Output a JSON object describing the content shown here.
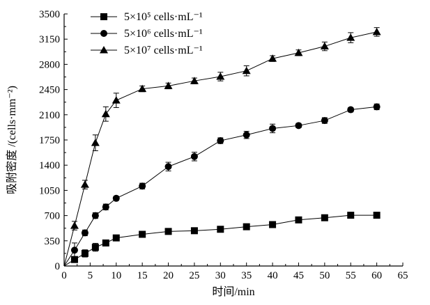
{
  "chart_data": {
    "type": "line",
    "xlabel": "时间/min",
    "ylabel": "吸附密度 /(cells·mm⁻²)",
    "xlim": [
      0,
      65
    ],
    "ylim": [
      0,
      3500
    ],
    "xticks": [
      0,
      5,
      10,
      15,
      20,
      25,
      30,
      35,
      40,
      45,
      50,
      55,
      60,
      65
    ],
    "yticks": [
      0,
      350,
      700,
      1050,
      1400,
      1750,
      2100,
      2450,
      2800,
      3150,
      3500
    ],
    "grid": false,
    "legend_position": "top-left",
    "series": [
      {
        "name": "5×10⁵ cells·mL⁻¹",
        "marker": "square",
        "color": "#000000",
        "x": [
          2,
          4,
          6,
          8,
          10,
          15,
          20,
          25,
          30,
          35,
          40,
          45,
          50,
          55,
          60
        ],
        "y": [
          90,
          175,
          260,
          320,
          390,
          440,
          480,
          490,
          510,
          545,
          575,
          640,
          670,
          705,
          705
        ],
        "err": [
          40,
          50,
          55,
          40,
          40,
          25,
          25,
          20,
          20,
          20,
          30,
          30,
          25,
          20,
          15
        ]
      },
      {
        "name": "5×10⁶ cells·mL⁻¹",
        "marker": "circle",
        "color": "#000000",
        "x": [
          2,
          4,
          6,
          8,
          10,
          15,
          20,
          25,
          30,
          35,
          40,
          45,
          50,
          55,
          60
        ],
        "y": [
          220,
          460,
          700,
          820,
          940,
          1110,
          1380,
          1520,
          1740,
          1820,
          1910,
          1950,
          2020,
          2170,
          2210
        ],
        "err": [
          100,
          40,
          40,
          40,
          30,
          40,
          60,
          60,
          40,
          50,
          60,
          30,
          40,
          30,
          40
        ]
      },
      {
        "name": "5×10⁷ cells·mL⁻¹",
        "marker": "triangle",
        "color": "#000000",
        "x": [
          2,
          4,
          6,
          8,
          10,
          15,
          20,
          25,
          30,
          35,
          40,
          45,
          50,
          55,
          60
        ],
        "y": [
          560,
          1130,
          1710,
          2110,
          2300,
          2460,
          2500,
          2570,
          2630,
          2710,
          2880,
          2960,
          3050,
          3170,
          3250
        ],
        "err": [
          60,
          60,
          110,
          100,
          100,
          40,
          40,
          40,
          60,
          70,
          40,
          40,
          60,
          70,
          60
        ]
      }
    ]
  }
}
